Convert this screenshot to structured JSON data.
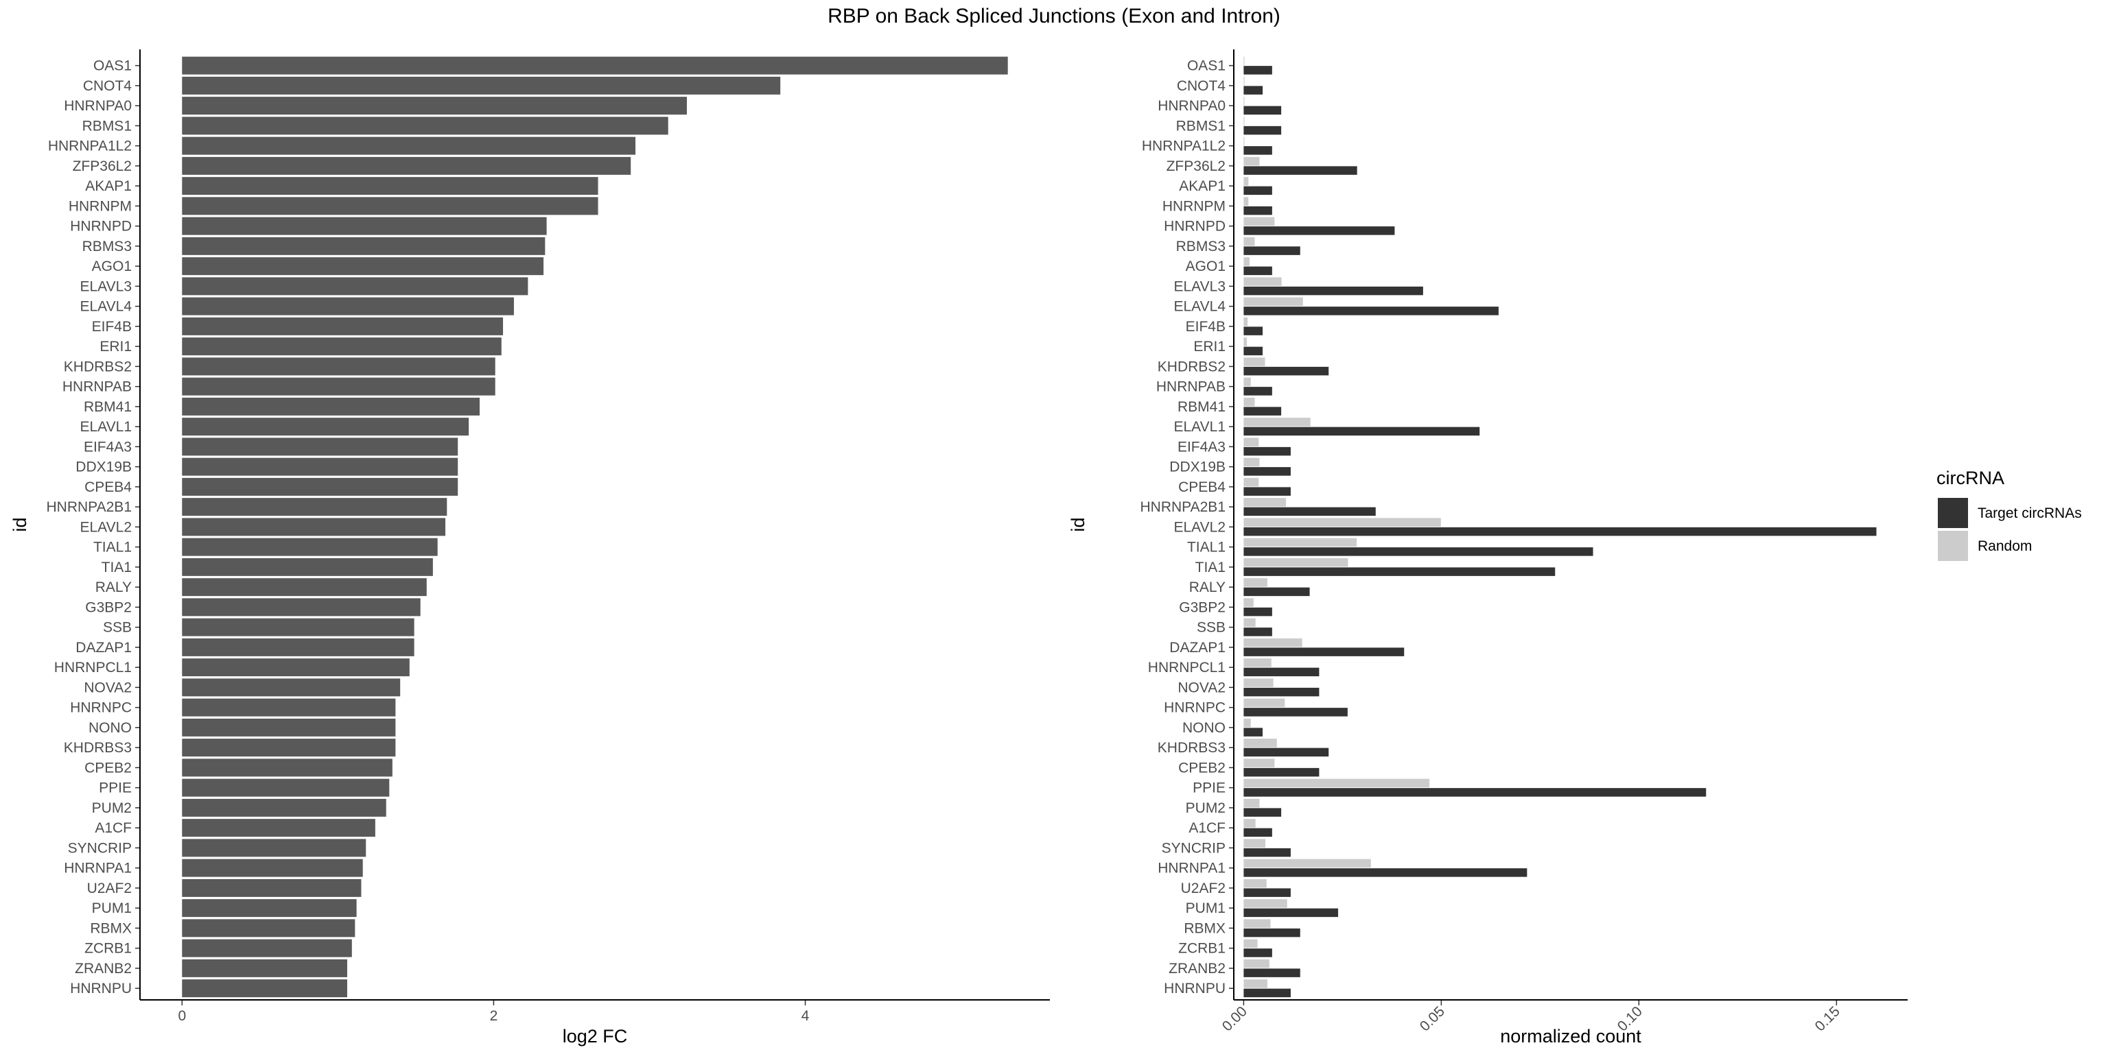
{
  "figure": {
    "title": "RBP on Back Spliced Junctions (Exon and Intron)"
  },
  "chart_data": [
    {
      "type": "bar",
      "orientation": "horizontal",
      "categories": [
        "OAS1",
        "CNOT4",
        "HNRNPA0",
        "RBMS1",
        "HNRNPA1L2",
        "ZFP36L2",
        "AKAP1",
        "HNRNPM",
        "HNRNPD",
        "RBMS3",
        "AGO1",
        "ELAVL3",
        "ELAVL4",
        "EIF4B",
        "ERI1",
        "KHDRBS2",
        "HNRNPAB",
        "RBM41",
        "ELAVL1",
        "EIF4A3",
        "DDX19B",
        "CPEB4",
        "HNRNPA2B1",
        "ELAVL2",
        "TIAL1",
        "TIA1",
        "RALY",
        "G3BP2",
        "SSB",
        "DAZAP1",
        "HNRNPCL1",
        "NOVA2",
        "HNRNPC",
        "NONO",
        "KHDRBS3",
        "CPEB2",
        "PPIE",
        "PUM2",
        "A1CF",
        "SYNCRIP",
        "HNRNPA1",
        "U2AF2",
        "PUM1",
        "RBMX",
        "ZCRB1",
        "ZRANB2",
        "HNRNPU"
      ],
      "values": [
        5.3,
        3.84,
        3.24,
        3.12,
        2.91,
        2.88,
        2.67,
        2.67,
        2.34,
        2.33,
        2.32,
        2.22,
        2.13,
        2.06,
        2.05,
        2.01,
        2.01,
        1.91,
        1.84,
        1.77,
        1.77,
        1.77,
        1.7,
        1.69,
        1.64,
        1.61,
        1.57,
        1.53,
        1.49,
        1.49,
        1.46,
        1.4,
        1.37,
        1.37,
        1.37,
        1.35,
        1.33,
        1.31,
        1.24,
        1.18,
        1.16,
        1.15,
        1.12,
        1.11,
        1.09,
        1.06,
        1.06
      ],
      "xlabel": "log2 FC",
      "ylabel": "id",
      "xlim": [
        -0.27,
        5.57
      ],
      "xticks": [
        "0",
        "2",
        "4"
      ],
      "xtick_values": [
        0,
        2,
        4
      ],
      "grid": false,
      "bar_color": "#595959"
    },
    {
      "type": "bar",
      "orientation": "horizontal",
      "grouped": true,
      "categories": [
        "OAS1",
        "CNOT4",
        "HNRNPA0",
        "RBMS1",
        "HNRNPA1L2",
        "ZFP36L2",
        "AKAP1",
        "HNRNPM",
        "HNRNPD",
        "RBMS3",
        "AGO1",
        "ELAVL3",
        "ELAVL4",
        "EIF4B",
        "ERI1",
        "KHDRBS2",
        "HNRNPAB",
        "RBM41",
        "ELAVL1",
        "EIF4A3",
        "DDX19B",
        "CPEB4",
        "HNRNPA2B1",
        "ELAVL2",
        "TIAL1",
        "TIA1",
        "RALY",
        "G3BP2",
        "SSB",
        "DAZAP1",
        "HNRNPCL1",
        "NOVA2",
        "HNRNPC",
        "NONO",
        "KHDRBS3",
        "CPEB2",
        "PPIE",
        "PUM2",
        "A1CF",
        "SYNCRIP",
        "HNRNPA1",
        "U2AF2",
        "PUM1",
        "RBMX",
        "ZCRB1",
        "ZRANB2",
        "HNRNPU"
      ],
      "series": [
        {
          "name": "Target circRNAs",
          "color": "#333333",
          "values": [
            0.0072,
            0.0048,
            0.0095,
            0.0095,
            0.0072,
            0.0287,
            0.0072,
            0.0072,
            0.0382,
            0.0143,
            0.0072,
            0.0454,
            0.0645,
            0.0048,
            0.0048,
            0.0215,
            0.0072,
            0.0095,
            0.0597,
            0.0119,
            0.0119,
            0.0119,
            0.0334,
            0.1601,
            0.0884,
            0.0788,
            0.0167,
            0.0072,
            0.0072,
            0.0406,
            0.0191,
            0.0191,
            0.0263,
            0.0048,
            0.0215,
            0.0191,
            0.117,
            0.0095,
            0.0072,
            0.0119,
            0.0717,
            0.0119,
            0.0239,
            0.0143,
            0.0072,
            0.0143,
            0.0119
          ]
        },
        {
          "name": "Random",
          "color": "#cccccc",
          "values": [
            0.0002,
            0.0002,
            0.0002,
            0.0002,
            0.0002,
            0.004,
            0.0012,
            0.0012,
            0.0078,
            0.0028,
            0.0015,
            0.0096,
            0.015,
            0.001,
            0.0008,
            0.0054,
            0.0018,
            0.0028,
            0.0169,
            0.0038,
            0.004,
            0.0038,
            0.0107,
            0.0499,
            0.0286,
            0.0264,
            0.006,
            0.0025,
            0.003,
            0.0148,
            0.007,
            0.0075,
            0.0104,
            0.0018,
            0.0084,
            0.0078,
            0.047,
            0.004,
            0.003,
            0.0055,
            0.0322,
            0.0058,
            0.011,
            0.0068,
            0.0035,
            0.0065,
            0.006
          ]
        }
      ],
      "xlabel": "normalized count",
      "ylabel": "id",
      "xlim": [
        -0.0025,
        0.168
      ],
      "xticks": [
        "0.00",
        "0.05",
        "0.10",
        "0.15"
      ],
      "xtick_values": [
        0,
        0.05,
        0.1,
        0.15
      ],
      "xtick_rotation": -45,
      "grid": false,
      "legend": {
        "title": "circRNA",
        "placement": "right",
        "entries": [
          "Target circRNAs",
          "Random"
        ]
      }
    }
  ]
}
